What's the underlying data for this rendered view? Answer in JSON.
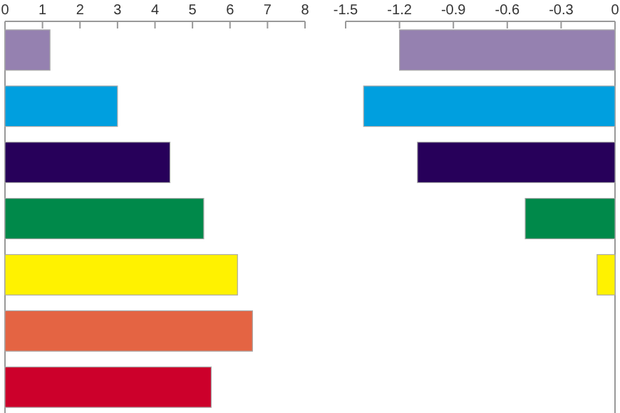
{
  "chart_data": [
    {
      "type": "bar",
      "orientation": "horizontal",
      "categories": [
        null,
        null,
        null,
        null,
        null,
        null,
        null
      ],
      "values": [
        1.2,
        3.0,
        4.4,
        5.3,
        6.2,
        6.6,
        5.5
      ],
      "colors": [
        "#9581b0",
        "#009fdf",
        "#27005a",
        "#00894a",
        "#fff200",
        "#e46443",
        "#cc002b"
      ],
      "xlim": [
        0,
        8
      ],
      "xticks": [
        0,
        1,
        2,
        3,
        4,
        5,
        6,
        7,
        8
      ],
      "tick_labels": "x"
    },
    {
      "type": "bar",
      "orientation": "horizontal",
      "categories": [
        null,
        null,
        null,
        null,
        null,
        null,
        null
      ],
      "values": [
        -1.2,
        -1.4,
        -1.1,
        -0.5,
        -0.1,
        0,
        0
      ],
      "colors": [
        "#9581b0",
        "#009fdf",
        "#27005a",
        "#00894a",
        "#fff200",
        "#e46443",
        "#cc002b"
      ],
      "xlim": [
        -1.5,
        0
      ],
      "xticks": [
        -1.5,
        -1.2,
        -0.9,
        -0.6,
        -0.3,
        0
      ],
      "tick_labels": "x"
    }
  ]
}
